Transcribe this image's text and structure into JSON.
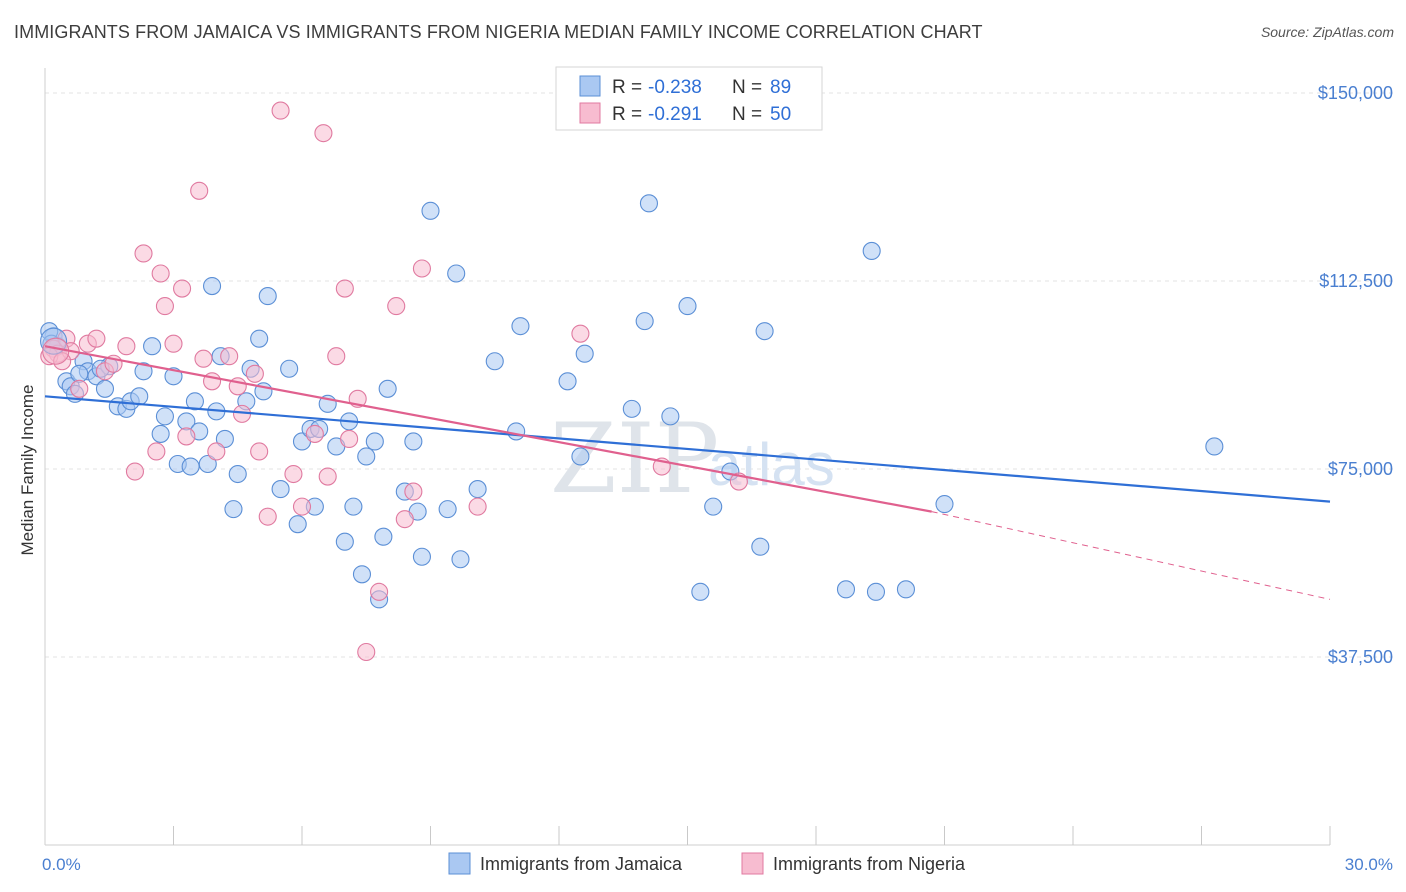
{
  "header": {
    "title": "IMMIGRANTS FROM JAMAICA VS IMMIGRANTS FROM NIGERIA MEDIAN FAMILY INCOME CORRELATION CHART",
    "source": "Source: ZipAtlas.com"
  },
  "legend_top": {
    "rows": [
      {
        "r_label": "R =",
        "r_value": "-0.238",
        "n_label": "N =",
        "n_value": "89",
        "color": "#aac8f2"
      },
      {
        "r_label": "R =",
        "r_value": "-0.291",
        "n_label": "N =",
        "n_value": "50",
        "color": "#f7bcd0"
      }
    ]
  },
  "watermark": {
    "big": "ZIP",
    "small": "atlas"
  },
  "chart_data": {
    "type": "scatter",
    "title": "IMMIGRANTS FROM JAMAICA VS IMMIGRANTS FROM NIGERIA MEDIAN FAMILY INCOME CORRELATION CHART",
    "xlabel": "",
    "ylabel": "Median Family Income",
    "xlim": [
      0,
      30
    ],
    "ylim": [
      0,
      153000
    ],
    "y_ticks": [
      37500,
      75000,
      112500,
      150000
    ],
    "y_tick_labels": [
      "$37,500",
      "$75,000",
      "$112,500",
      "$150,000"
    ],
    "x_tick_labels": [
      "0.0%",
      "30.0%"
    ],
    "x_minor_ticks": [
      3,
      6,
      9,
      12,
      15,
      18,
      21,
      24,
      27,
      30
    ],
    "grid": "horizontal dashed",
    "legend_position": "top-center",
    "series": [
      {
        "name": "Immigrants from Jamaica",
        "color": "#aac8f2",
        "edge": "#5b8fd6",
        "line_color": "#2f6fd6",
        "trend": {
          "x0": 0,
          "y0": 89500,
          "x1": 30,
          "y1": 68500
        },
        "points": [
          [
            0.2,
            101500
          ],
          [
            0.3,
            99500
          ],
          [
            0.5,
            92500
          ],
          [
            0.6,
            91500
          ],
          [
            0.7,
            90000
          ],
          [
            0.9,
            96500
          ],
          [
            1.0,
            94500
          ],
          [
            1.2,
            93500
          ],
          [
            1.4,
            91000
          ],
          [
            1.5,
            95500
          ],
          [
            1.7,
            87500
          ],
          [
            1.9,
            87000
          ],
          [
            2.0,
            88500
          ],
          [
            2.2,
            89500
          ],
          [
            2.3,
            94500
          ],
          [
            2.5,
            99500
          ],
          [
            2.7,
            82000
          ],
          [
            2.8,
            85500
          ],
          [
            3.0,
            93500
          ],
          [
            3.1,
            76000
          ],
          [
            3.3,
            84500
          ],
          [
            3.4,
            75500
          ],
          [
            3.5,
            88500
          ],
          [
            3.6,
            82500
          ],
          [
            3.8,
            76000
          ],
          [
            3.9,
            111500
          ],
          [
            4.0,
            86500
          ],
          [
            4.1,
            97500
          ],
          [
            4.2,
            81000
          ],
          [
            4.4,
            67000
          ],
          [
            4.5,
            74000
          ],
          [
            4.7,
            88500
          ],
          [
            4.8,
            95000
          ],
          [
            5.0,
            101000
          ],
          [
            5.1,
            90500
          ],
          [
            5.2,
            109500
          ],
          [
            5.5,
            71000
          ],
          [
            5.7,
            95000
          ],
          [
            5.9,
            64000
          ],
          [
            6.0,
            80500
          ],
          [
            6.2,
            83000
          ],
          [
            6.3,
            67500
          ],
          [
            6.4,
            83000
          ],
          [
            6.6,
            88000
          ],
          [
            6.8,
            79500
          ],
          [
            7.0,
            60500
          ],
          [
            7.1,
            84500
          ],
          [
            7.2,
            67500
          ],
          [
            7.4,
            54000
          ],
          [
            7.5,
            77500
          ],
          [
            7.7,
            80500
          ],
          [
            7.8,
            49000
          ],
          [
            7.9,
            61500
          ],
          [
            8.0,
            91000
          ],
          [
            8.4,
            70500
          ],
          [
            8.6,
            80500
          ],
          [
            8.7,
            66500
          ],
          [
            8.8,
            57500
          ],
          [
            9.0,
            126500
          ],
          [
            9.4,
            67000
          ],
          [
            9.6,
            114000
          ],
          [
            9.7,
            57000
          ],
          [
            10.1,
            71000
          ],
          [
            10.5,
            96500
          ],
          [
            11.0,
            82500
          ],
          [
            11.1,
            103500
          ],
          [
            12.2,
            92500
          ],
          [
            12.5,
            77500
          ],
          [
            12.6,
            98000
          ],
          [
            13.7,
            87000
          ],
          [
            14.0,
            104500
          ],
          [
            14.1,
            128000
          ],
          [
            14.6,
            85500
          ],
          [
            15.0,
            107500
          ],
          [
            15.3,
            50500
          ],
          [
            15.6,
            67500
          ],
          [
            16.0,
            74500
          ],
          [
            16.7,
            59500
          ],
          [
            16.8,
            102500
          ],
          [
            18.7,
            51000
          ],
          [
            19.3,
            118500
          ],
          [
            19.4,
            50500
          ],
          [
            20.1,
            51000
          ],
          [
            21.0,
            68000
          ],
          [
            27.3,
            79500
          ],
          [
            0.1,
            102500
          ],
          [
            0.15,
            100000
          ],
          [
            0.8,
            94000
          ],
          [
            1.3,
            95000
          ]
        ]
      },
      {
        "name": "Immigrants from Nigeria",
        "color": "#f7bcd0",
        "edge": "#e07aa0",
        "line_color": "#e0608e",
        "trend": {
          "x0": 0,
          "y0": 99500,
          "x1": 20.7,
          "y1": 66500
        },
        "trend_dashed": {
          "x0": 20.7,
          "y0": 66500,
          "x1": 30,
          "y1": 49000
        },
        "points": [
          [
            0.2,
            99000
          ],
          [
            0.3,
            98000
          ],
          [
            0.5,
            101000
          ],
          [
            0.6,
            98500
          ],
          [
            0.8,
            91000
          ],
          [
            1.0,
            100000
          ],
          [
            1.2,
            101000
          ],
          [
            1.4,
            94500
          ],
          [
            1.6,
            96000
          ],
          [
            1.9,
            99500
          ],
          [
            2.1,
            74500
          ],
          [
            2.3,
            118000
          ],
          [
            2.6,
            78500
          ],
          [
            2.7,
            114000
          ],
          [
            2.8,
            107500
          ],
          [
            3.0,
            100000
          ],
          [
            3.2,
            111000
          ],
          [
            3.3,
            81500
          ],
          [
            3.6,
            130500
          ],
          [
            3.7,
            97000
          ],
          [
            3.9,
            92500
          ],
          [
            4.0,
            78500
          ],
          [
            4.3,
            97500
          ],
          [
            4.5,
            91500
          ],
          [
            4.6,
            86000
          ],
          [
            4.9,
            94000
          ],
          [
            5.0,
            78500
          ],
          [
            5.2,
            65500
          ],
          [
            5.5,
            146500
          ],
          [
            5.8,
            74000
          ],
          [
            6.0,
            67500
          ],
          [
            6.3,
            82000
          ],
          [
            6.5,
            142000
          ],
          [
            6.6,
            73500
          ],
          [
            6.8,
            97500
          ],
          [
            7.0,
            111000
          ],
          [
            7.1,
            81000
          ],
          [
            7.3,
            89000
          ],
          [
            7.5,
            38500
          ],
          [
            7.8,
            50500
          ],
          [
            8.2,
            107500
          ],
          [
            8.4,
            65000
          ],
          [
            8.6,
            70500
          ],
          [
            8.8,
            115000
          ],
          [
            10.1,
            67500
          ],
          [
            12.5,
            102000
          ],
          [
            14.4,
            75500
          ],
          [
            16.2,
            72500
          ],
          [
            0.1,
            97500
          ],
          [
            0.4,
            96500
          ]
        ]
      }
    ]
  },
  "bottom_legend": {
    "items": [
      {
        "label": "Immigrants from Jamaica",
        "color": "#aac8f2",
        "edge": "#5b8fd6"
      },
      {
        "label": "Immigrants from Nigeria",
        "color": "#f7bcd0",
        "edge": "#e07aa0"
      }
    ]
  }
}
